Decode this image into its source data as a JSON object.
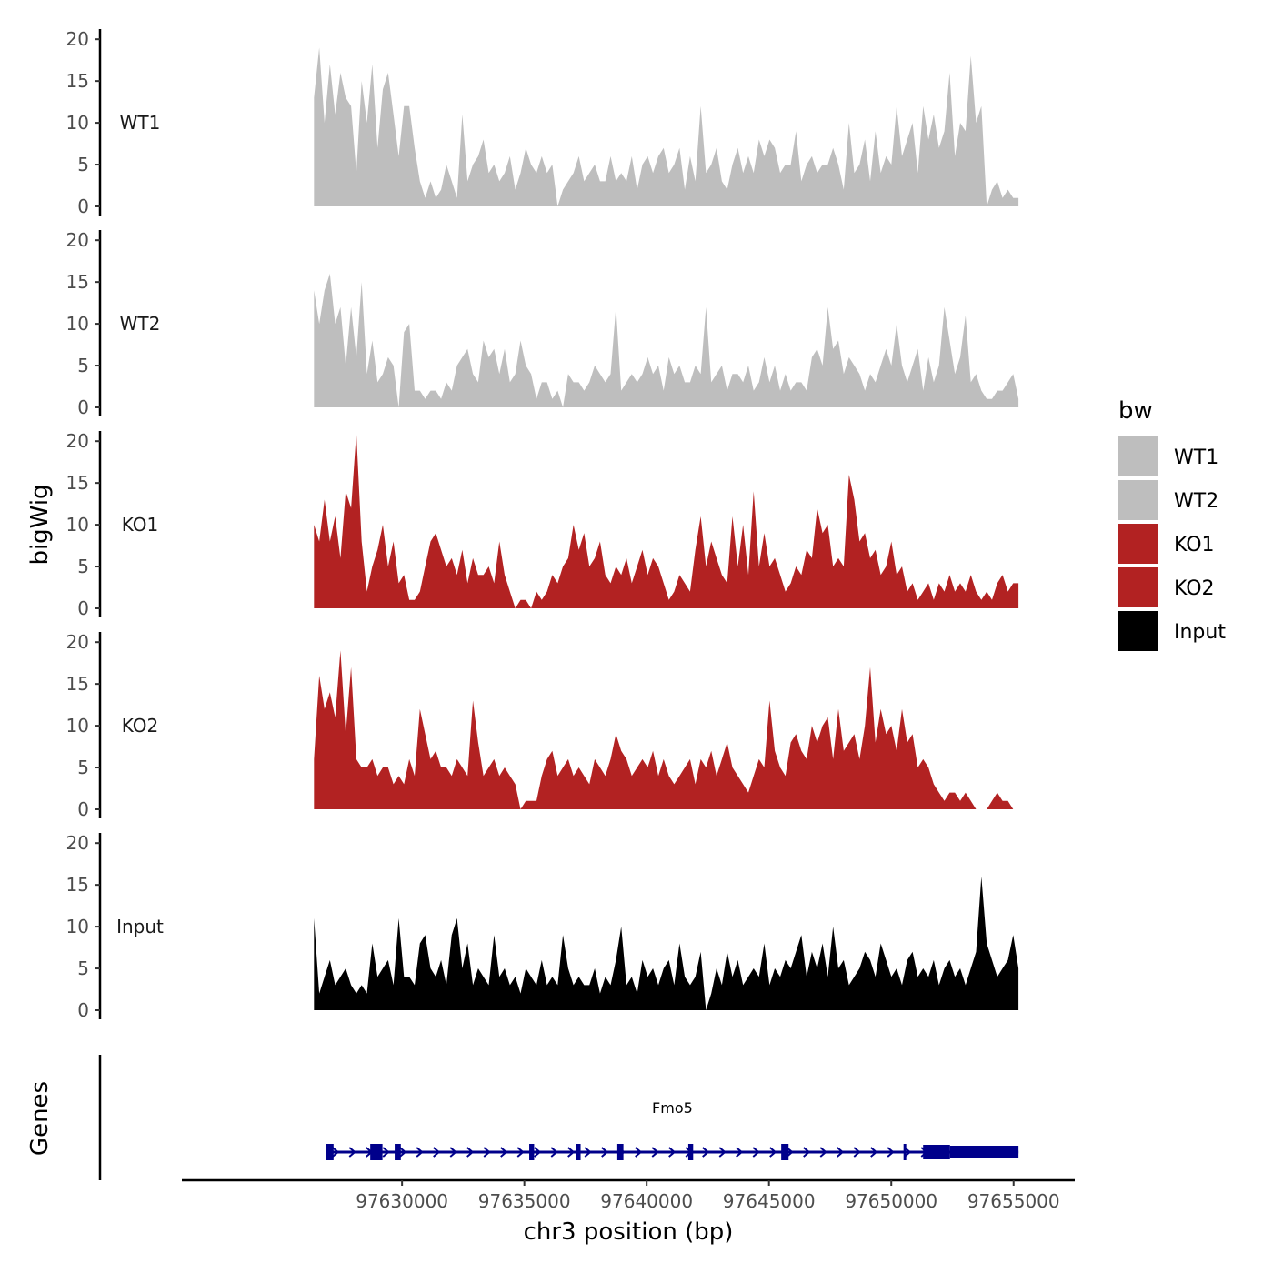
{
  "chart_data": {
    "type": "area",
    "xlabel": "chr3 position (bp)",
    "ylabel": "bigWig",
    "xlim": [
      97621000,
      97657500
    ],
    "data_x_range": [
      97626400,
      97655200
    ],
    "x_ticks": [
      97630000,
      97635000,
      97640000,
      97645000,
      97650000,
      97655000
    ],
    "x_tick_labels": [
      "97630000",
      "97635000",
      "97640000",
      "97645000",
      "97650000",
      "97655000"
    ],
    "ylim": [
      0,
      21
    ],
    "y_ticks": [
      0,
      5,
      10,
      15,
      20
    ],
    "y_tick_labels": [
      "0",
      "5",
      "10",
      "15",
      "20"
    ],
    "legend": {
      "title": "bw",
      "position": "right",
      "entries": [
        {
          "label": "WT1",
          "color": "#bebebe"
        },
        {
          "label": "WT2",
          "color": "#bebebe"
        },
        {
          "label": "KO1",
          "color": "#b22222"
        },
        {
          "label": "KO2",
          "color": "#b22222"
        },
        {
          "label": "Input",
          "color": "#000000"
        }
      ]
    },
    "series": [
      {
        "name": "WT1",
        "color": "#bebebe",
        "values": [
          13,
          19,
          10,
          17,
          11,
          16,
          13,
          12,
          4,
          15,
          10,
          17,
          7,
          14,
          16,
          11,
          6,
          12,
          12,
          7,
          3,
          1,
          3,
          1,
          2,
          5,
          3,
          1,
          11,
          3,
          5,
          6,
          8,
          4,
          5,
          3,
          4,
          6,
          2,
          4,
          7,
          5,
          4,
          6,
          4,
          5,
          0,
          2,
          3,
          4,
          6,
          3,
          4,
          5,
          3,
          3,
          6,
          3,
          4,
          3,
          6,
          2,
          5,
          6,
          4,
          6,
          7,
          4,
          5,
          7,
          2,
          6,
          3,
          12,
          4,
          5,
          7,
          3,
          2,
          5,
          7,
          4,
          6,
          4,
          8,
          6,
          8,
          7,
          4,
          5,
          5,
          9,
          3,
          5,
          6,
          4,
          5,
          5,
          7,
          5,
          2,
          10,
          4,
          5,
          8,
          3,
          9,
          4,
          6,
          5,
          12,
          6,
          8,
          10,
          4,
          12,
          8,
          11,
          7,
          9,
          16,
          6,
          10,
          9,
          18,
          10,
          12,
          0,
          2,
          3,
          1,
          2,
          1,
          1
        ]
      },
      {
        "name": "WT2",
        "color": "#bebebe",
        "values": [
          14,
          10,
          14,
          16,
          10,
          12,
          5,
          12,
          6,
          15,
          4,
          8,
          3,
          4,
          6,
          5,
          0,
          9,
          10,
          2,
          2,
          1,
          2,
          2,
          1,
          3,
          2,
          5,
          6,
          7,
          4,
          3,
          8,
          6,
          7,
          4,
          7,
          3,
          4,
          8,
          5,
          4,
          1,
          3,
          3,
          1,
          2,
          0,
          4,
          3,
          3,
          2,
          3,
          5,
          4,
          3,
          4,
          12,
          2,
          3,
          4,
          3,
          4,
          6,
          4,
          5,
          2,
          6,
          4,
          5,
          3,
          3,
          5,
          4,
          12,
          3,
          4,
          5,
          2,
          4,
          4,
          3,
          5,
          2,
          3,
          6,
          3,
          5,
          2,
          4,
          2,
          3,
          3,
          2,
          6,
          7,
          5,
          12,
          7,
          8,
          4,
          6,
          5,
          4,
          2,
          4,
          3,
          5,
          7,
          5,
          10,
          5,
          3,
          5,
          7,
          2,
          6,
          3,
          5,
          12,
          8,
          4,
          6,
          11,
          3,
          4,
          2,
          1,
          1,
          2,
          2,
          3,
          4,
          1
        ]
      },
      {
        "name": "KO1",
        "color": "#b22222",
        "values": [
          10,
          8,
          13,
          8,
          11,
          6,
          14,
          12,
          21,
          8,
          2,
          5,
          7,
          10,
          5,
          8,
          3,
          4,
          1,
          1,
          2,
          5,
          8,
          9,
          7,
          5,
          6,
          4,
          7,
          3,
          6,
          4,
          4,
          5,
          3,
          8,
          4,
          2,
          0,
          1,
          1,
          0,
          2,
          1,
          2,
          4,
          3,
          5,
          6,
          10,
          7,
          9,
          5,
          6,
          8,
          4,
          3,
          5,
          4,
          6,
          3,
          5,
          7,
          4,
          6,
          5,
          3,
          1,
          2,
          4,
          3,
          2,
          7,
          11,
          5,
          8,
          6,
          4,
          3,
          11,
          5,
          10,
          4,
          14,
          5,
          9,
          5,
          6,
          4,
          2,
          3,
          5,
          4,
          7,
          6,
          12,
          9,
          10,
          5,
          6,
          5,
          16,
          13,
          8,
          9,
          6,
          7,
          4,
          5,
          8,
          4,
          5,
          2,
          3,
          1,
          2,
          3,
          1,
          3,
          2,
          4,
          2,
          3,
          2,
          4,
          2,
          1,
          2,
          1,
          3,
          4,
          2,
          3,
          3
        ]
      },
      {
        "name": "KO2",
        "color": "#b22222",
        "values": [
          6,
          16,
          12,
          14,
          11,
          19,
          9,
          17,
          6,
          5,
          5,
          6,
          4,
          5,
          5,
          3,
          4,
          3,
          6,
          4,
          12,
          9,
          6,
          7,
          5,
          5,
          4,
          6,
          5,
          4,
          13,
          8,
          4,
          5,
          6,
          4,
          5,
          4,
          3,
          0,
          1,
          1,
          1,
          4,
          6,
          7,
          4,
          5,
          6,
          4,
          5,
          4,
          3,
          6,
          5,
          4,
          6,
          9,
          7,
          6,
          4,
          5,
          6,
          5,
          7,
          4,
          6,
          4,
          3,
          4,
          5,
          6,
          3,
          6,
          5,
          7,
          4,
          6,
          8,
          5,
          4,
          3,
          2,
          4,
          6,
          5,
          13,
          7,
          5,
          4,
          8,
          9,
          7,
          6,
          10,
          8,
          10,
          11,
          6,
          12,
          7,
          8,
          9,
          6,
          10,
          17,
          8,
          12,
          9,
          10,
          7,
          12,
          8,
          9,
          5,
          6,
          5,
          3,
          2,
          1,
          2,
          2,
          1,
          2,
          1,
          0,
          0,
          0,
          1,
          2,
          1,
          1,
          0,
          0
        ]
      },
      {
        "name": "Input",
        "color": "#000000",
        "values": [
          11,
          2,
          4,
          6,
          3,
          4,
          5,
          3,
          2,
          3,
          2,
          8,
          4,
          5,
          6,
          3,
          11,
          4,
          4,
          3,
          8,
          9,
          5,
          4,
          6,
          3,
          9,
          11,
          5,
          8,
          3,
          5,
          4,
          3,
          9,
          4,
          5,
          3,
          4,
          2,
          5,
          4,
          3,
          6,
          3,
          4,
          3,
          9,
          5,
          3,
          4,
          3,
          3,
          5,
          2,
          4,
          3,
          6,
          10,
          3,
          4,
          2,
          6,
          4,
          5,
          3,
          5,
          6,
          3,
          8,
          4,
          3,
          4,
          7,
          0,
          2,
          5,
          3,
          7,
          4,
          6,
          3,
          4,
          5,
          4,
          8,
          3,
          5,
          4,
          6,
          5,
          7,
          9,
          4,
          7,
          5,
          8,
          4,
          10,
          5,
          6,
          3,
          4,
          5,
          7,
          6,
          4,
          8,
          6,
          4,
          5,
          3,
          6,
          7,
          4,
          5,
          4,
          6,
          3,
          5,
          6,
          4,
          5,
          3,
          5,
          7,
          16,
          8,
          6,
          4,
          5,
          6,
          9,
          5
        ]
      }
    ],
    "genes": {
      "track_label": "Genes",
      "name": "Fmo5",
      "strand": "+",
      "start": 97626900,
      "end": 97655200,
      "exons": [
        [
          97626900,
          97627200
        ],
        [
          97628700,
          97629200
        ],
        [
          97629700,
          97629950
        ],
        [
          97635200,
          97635400
        ],
        [
          97637100,
          97637300
        ],
        [
          97638800,
          97639050
        ],
        [
          97641700,
          97641900
        ],
        [
          97645500,
          97645800
        ],
        [
          97650500,
          97650600
        ],
        [
          97651300,
          97652400
        ],
        [
          97652400,
          97655200
        ]
      ]
    }
  }
}
